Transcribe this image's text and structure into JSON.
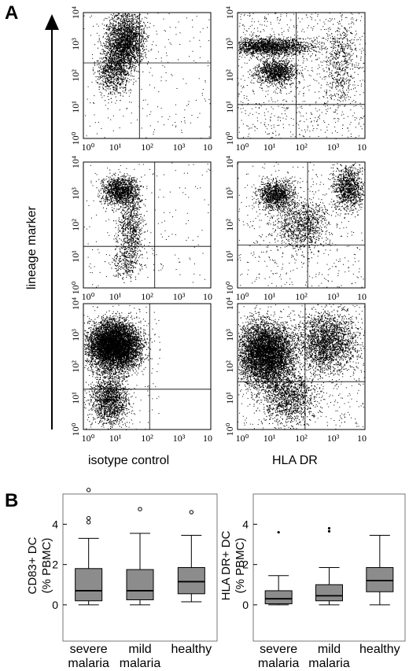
{
  "panel_a": {
    "label": "A",
    "y_axis_title": "lineage marker",
    "x_title_left": "isotype control",
    "x_title_right": "HLA DR",
    "y_tick_labels": [
      "10⁰",
      "10¹",
      "10²",
      "10³",
      "10⁴"
    ],
    "x_tick_labels": [
      "10⁰",
      "10¹",
      "10²",
      "10³",
      "10"
    ]
  },
  "panel_b": {
    "label": "B",
    "left_y_title_line1": "CD83+ DC",
    "left_y_title_line2": "(% PBMC)",
    "right_y_title_line1": "HLA DR+ DC",
    "right_y_title_line2": "(% PBMC)",
    "y_ticks": [
      "0",
      "2",
      "4"
    ],
    "categories": [
      {
        "line1": "severe",
        "line2": "malaria"
      },
      {
        "line1": "mild",
        "line2": "malaria"
      },
      {
        "line1": "healthy",
        "line2": ""
      }
    ]
  },
  "colors": {
    "box_fill": "#8c8c8c",
    "dots": "#000000"
  },
  "chart_data": [
    {
      "type": "box",
      "name": "CD83+ DC",
      "ylabel": "CD83+ DC (% PBMC)",
      "categories": [
        "severe malaria",
        "mild malaria",
        "healthy"
      ],
      "ylim": [
        -1.8,
        5.5
      ],
      "boxes": [
        {
          "min": 0.0,
          "q1": 0.2,
          "median": 0.7,
          "q3": 1.8,
          "max": 3.3,
          "outliers": [
            4.1,
            4.3,
            5.7
          ]
        },
        {
          "min": 0.0,
          "q1": 0.25,
          "median": 0.7,
          "q3": 1.75,
          "max": 3.55,
          "outliers": [
            4.75
          ]
        },
        {
          "min": 0.15,
          "q1": 0.55,
          "median": 1.15,
          "q3": 1.85,
          "max": 3.45,
          "outliers": [
            4.6
          ]
        }
      ]
    },
    {
      "type": "box",
      "name": "HLA DR+ DC",
      "ylabel": "HLA DR+ DC (% PBMC)",
      "categories": [
        "severe malaria",
        "mild malaria",
        "healthy"
      ],
      "ylim": [
        -1.8,
        5.5
      ],
      "boxes": [
        {
          "min": 0.0,
          "q1": 0.05,
          "median": 0.3,
          "q3": 0.7,
          "max": 1.45,
          "outliers": [
            3.6
          ]
        },
        {
          "min": 0.0,
          "q1": 0.2,
          "median": 0.45,
          "q3": 1.0,
          "max": 1.85,
          "outliers": [
            3.65,
            3.8
          ]
        },
        {
          "min": 0.0,
          "q1": 0.65,
          "median": 1.2,
          "q3": 1.85,
          "max": 3.45,
          "outliers": []
        }
      ]
    }
  ]
}
